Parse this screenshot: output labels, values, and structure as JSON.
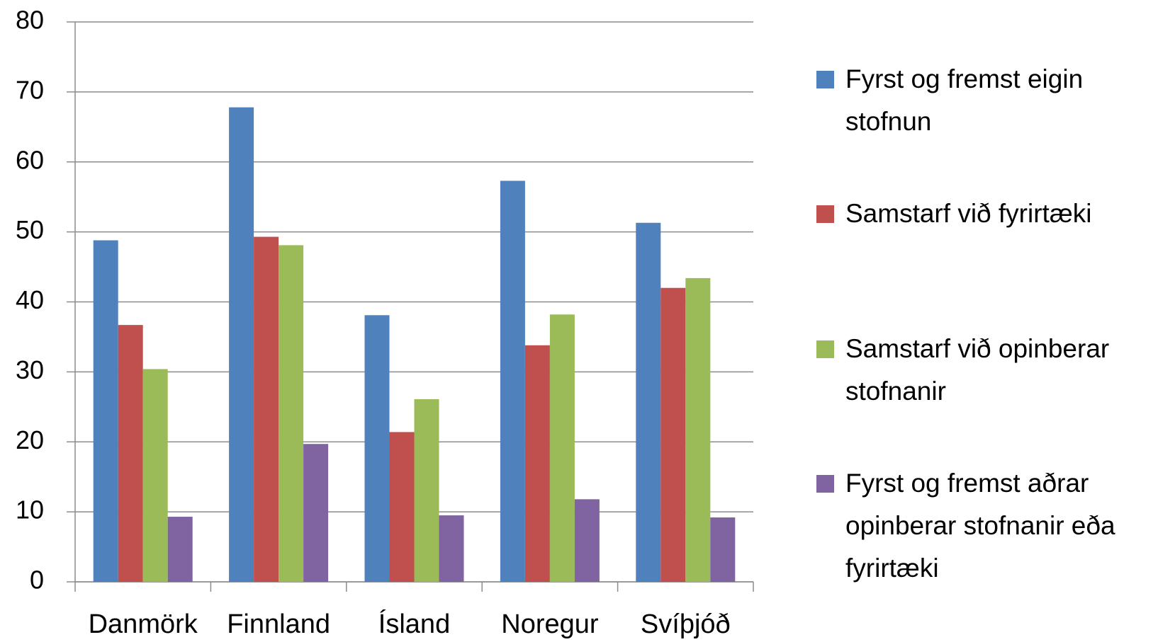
{
  "chart_data": {
    "type": "bar",
    "categories": [
      "Danmörk",
      "Finnland",
      "Ísland",
      "Noregur",
      "Svíþjóð"
    ],
    "series": [
      {
        "name": "Fyrst og fremst eigin stofnun",
        "color": "#4f81bd",
        "values": [
          48.8,
          67.8,
          38.1,
          57.3,
          51.3
        ]
      },
      {
        "name": "Samstarf við fyrirtæki",
        "color": "#c0504d",
        "values": [
          36.7,
          49.3,
          21.4,
          33.8,
          42.0
        ]
      },
      {
        "name": "Samstarf við opinberar stofnanir",
        "color": "#9bbb59",
        "values": [
          30.4,
          48.1,
          26.1,
          38.2,
          43.4
        ]
      },
      {
        "name": "Fyrst og fremst aðrar opinberar stofnanir eða fyrirtæki",
        "color": "#8064a2",
        "values": [
          9.3,
          19.7,
          9.5,
          11.8,
          9.2
        ]
      }
    ],
    "ylim": [
      0,
      80
    ],
    "yticks": [
      0,
      10,
      20,
      30,
      40,
      50,
      60,
      70,
      80
    ],
    "grid": true,
    "legend": "right"
  }
}
